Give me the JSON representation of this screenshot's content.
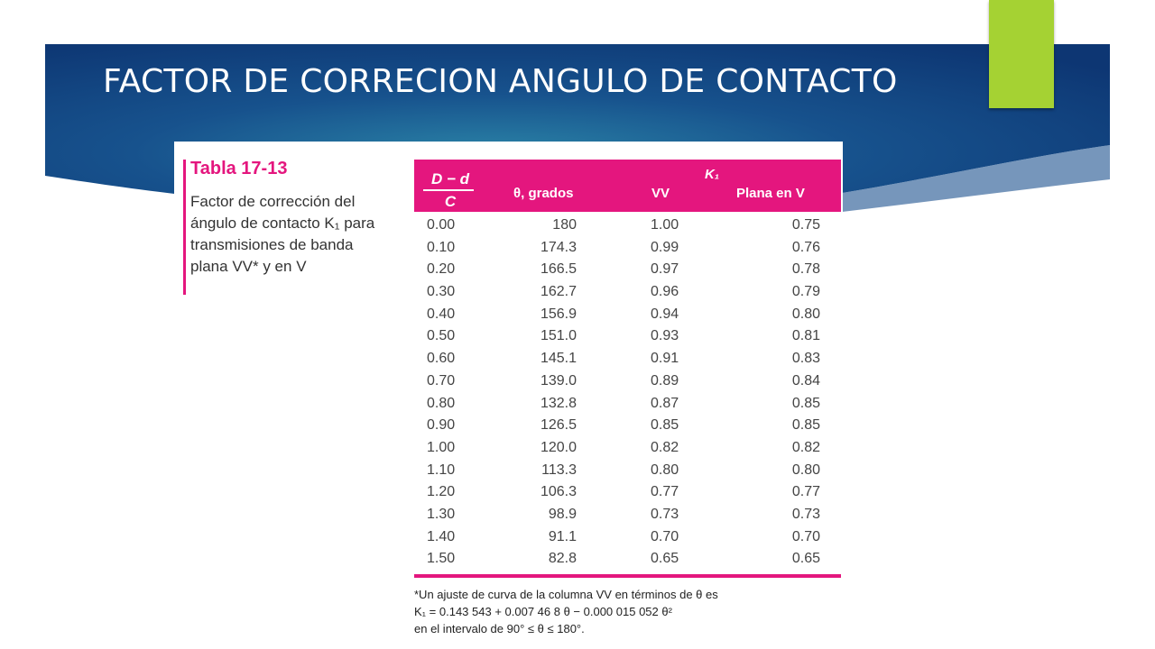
{
  "slide": {
    "title": "FACTOR DE CORRECION ANGULO DE CONTACTO",
    "colors": {
      "banner_dark": "#0d3673",
      "banner_light": "#2a82a6",
      "accent": "#a5d233",
      "table_magenta": "#e4167e"
    }
  },
  "table": {
    "caption_title": "Tabla 17-13",
    "caption_text": "Factor de corrección del ángulo de contacto K₁ para transmisiones de banda plana VV* y en V",
    "headers": {
      "ratio_num": "D − d",
      "ratio_den": "C",
      "theta": "θ, grados",
      "k1": "K₁",
      "vv": "VV",
      "plana": "Plana en V"
    },
    "rows": [
      [
        "0.00",
        "180",
        "1.00",
        "0.75"
      ],
      [
        "0.10",
        "174.3",
        "0.99",
        "0.76"
      ],
      [
        "0.20",
        "166.5",
        "0.97",
        "0.78"
      ],
      [
        "0.30",
        "162.7",
        "0.96",
        "0.79"
      ],
      [
        "0.40",
        "156.9",
        "0.94",
        "0.80"
      ],
      [
        "0.50",
        "151.0",
        "0.93",
        "0.81"
      ],
      [
        "0.60",
        "145.1",
        "0.91",
        "0.83"
      ],
      [
        "0.70",
        "139.0",
        "0.89",
        "0.84"
      ],
      [
        "0.80",
        "132.8",
        "0.87",
        "0.85"
      ],
      [
        "0.90",
        "126.5",
        "0.85",
        "0.85"
      ],
      [
        "1.00",
        "120.0",
        "0.82",
        "0.82"
      ],
      [
        "1.10",
        "113.3",
        "0.80",
        "0.80"
      ],
      [
        "1.20",
        "106.3",
        "0.77",
        "0.77"
      ],
      [
        "1.30",
        "98.9",
        "0.73",
        "0.73"
      ],
      [
        "1.40",
        "91.1",
        "0.70",
        "0.70"
      ],
      [
        "1.50",
        "82.8",
        "0.65",
        "0.65"
      ]
    ],
    "footnote": [
      "*Un ajuste de curva de la columna VV en términos de θ es",
      "K₁ = 0.143 543 + 0.007 46 8 θ − 0.000 015 052 θ²",
      "en el intervalo de 90° ≤ θ ≤ 180°."
    ]
  }
}
